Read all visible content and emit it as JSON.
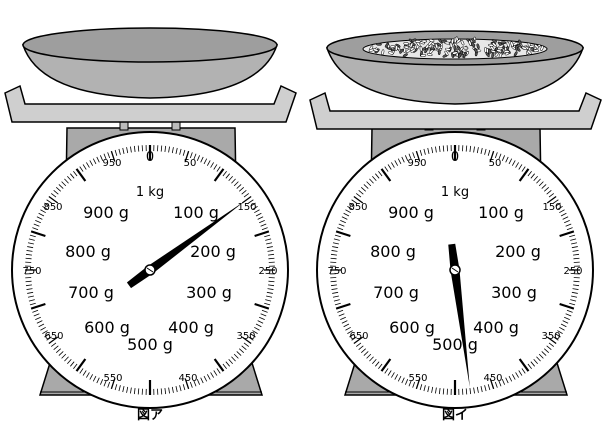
{
  "figures": [
    {
      "id": "a",
      "caption": "図ア",
      "bowl_filled": false,
      "needle_grams": 150,
      "labels": {
        "top_zero": "0",
        "kg": "1 kg",
        "outer": [
          "50",
          "150",
          "250",
          "350",
          "450",
          "550",
          "650",
          "750",
          "850",
          "950"
        ],
        "inner": [
          "100 g",
          "200 g",
          "300 g",
          "400 g",
          "500 g",
          "600 g",
          "700 g",
          "800 g",
          "900 g"
        ]
      }
    },
    {
      "id": "b",
      "caption": "図イ",
      "bowl_filled": true,
      "needle_grams": 480,
      "labels": {
        "top_zero": "0",
        "kg": "1 kg",
        "outer": [
          "50",
          "150",
          "250",
          "350",
          "450",
          "550",
          "650",
          "750",
          "850",
          "950"
        ],
        "inner": [
          "100 g",
          "200 g",
          "300 g",
          "400 g",
          "500 g",
          "600 g",
          "700 g",
          "800 g",
          "900 g"
        ]
      }
    }
  ],
  "colors": {
    "body": "#a9a9a9",
    "bowl": "#b2b2b2",
    "tray": "#cccccc",
    "ink": "#000000"
  }
}
